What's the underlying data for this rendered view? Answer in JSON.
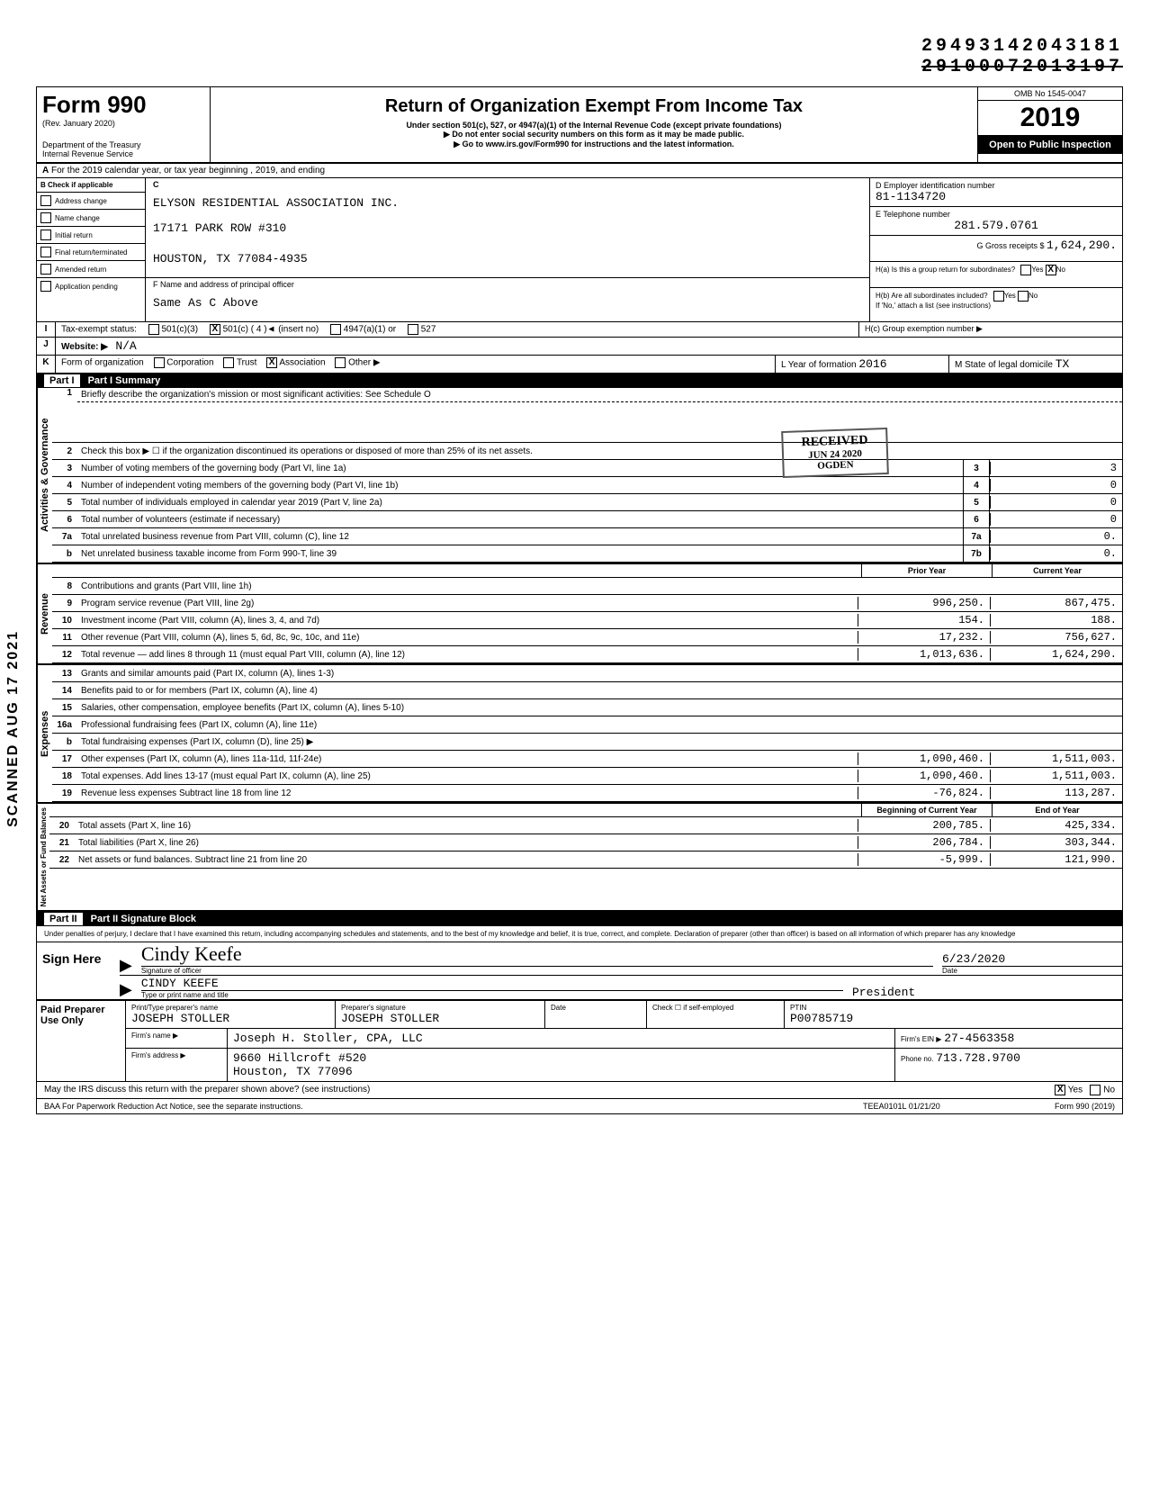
{
  "top_codes": {
    "line1": "29493142043181",
    "line2": "29100072013197"
  },
  "scanned_stamp": "SCANNED AUG 17 2021",
  "received_stamp": {
    "l1": "RECEIVED",
    "l2": "JUN 24 2020",
    "l3": "OGDEN"
  },
  "header": {
    "form": "Form 990",
    "rev": "(Rev. January 2020)",
    "dept": "Department of the Treasury\nInternal Revenue Service",
    "title": "Return of Organization Exempt From Income Tax",
    "sub1": "Under section 501(c), 527, or 4947(a)(1) of the Internal Revenue Code (except private foundations)",
    "sub2": "▶ Do not enter social security numbers on this form as it may be made public.",
    "sub3": "▶ Go to www.irs.gov/Form990 for instructions and the latest information.",
    "omb": "OMB No 1545-0047",
    "year": "2019",
    "open": "Open to Public Inspection"
  },
  "row_a": "For the 2019 calendar year, or tax year beginning                 , 2019, and ending",
  "section_b": {
    "checks": [
      "Address change",
      "Name change",
      "Initial return",
      "Final return/terminated",
      "Amended return",
      "Application pending"
    ],
    "name": "ELYSON RESIDENTIAL ASSOCIATION INC.",
    "addr1": "17171 PARK ROW #310",
    "addr2": "HOUSTON, TX 77084-4935",
    "f_label": "F Name and address of principal officer",
    "f_value": "Same As C Above",
    "d_label": "D Employer identification number",
    "ein": "81-1134720",
    "e_label": "E Telephone number",
    "phone": "281.579.0761",
    "g_label": "G Gross receipts $",
    "gross": "1,624,290.",
    "ha": "H(a) Is this a group return for subordinates?",
    "hb": "H(b) Are all subordinates included?",
    "hb2": "If 'No,' attach a list (see instructions)",
    "hc": "H(c) Group exemption number ▶"
  },
  "row_i": {
    "label": "Tax-exempt status:",
    "v501c3": "501(c)(3)",
    "v501c": "501(c) ( 4 )◄ (insert no)",
    "v4947": "4947(a)(1) or",
    "v527": "527"
  },
  "row_j": {
    "label": "Website: ▶",
    "val": "N/A"
  },
  "row_k": {
    "label": "Form of organization",
    "opts": [
      "Corporation",
      "Trust",
      "Association",
      "Other ▶"
    ],
    "l_year_lbl": "L Year of formation",
    "l_year": "2016",
    "m_lbl": "M State of legal domicile",
    "m_val": "TX"
  },
  "part1": {
    "header": "Part I   Summary",
    "vtab1": "Activities & Governance",
    "vtab2": "Revenue",
    "vtab3": "Expenses",
    "vtab4": "Net Assets or Fund Balances",
    "line1": "Briefly describe the organization's mission or most significant activities: See Schedule O",
    "line2": "Check this box ▶ ☐ if the organization discontinued its operations or disposed of more than 25% of its net assets.",
    "lines_gov": [
      {
        "n": "3",
        "t": "Number of voting members of the governing body (Part VI, line 1a)",
        "b": "3",
        "v": "3"
      },
      {
        "n": "4",
        "t": "Number of independent voting members of the governing body (Part VI, line 1b)",
        "b": "4",
        "v": "0"
      },
      {
        "n": "5",
        "t": "Total number of individuals employed in calendar year 2019 (Part V, line 2a)",
        "b": "5",
        "v": "0"
      },
      {
        "n": "6",
        "t": "Total number of volunteers (estimate if necessary)",
        "b": "6",
        "v": "0"
      },
      {
        "n": "7a",
        "t": "Total unrelated business revenue from Part VIII, column (C), line 12",
        "b": "7a",
        "v": "0."
      },
      {
        "n": "b",
        "t": "Net unrelated business taxable income from Form 990-T, line 39",
        "b": "7b",
        "v": "0."
      }
    ],
    "prior_lbl": "Prior Year",
    "curr_lbl": "Current Year",
    "rev": [
      {
        "n": "8",
        "t": "Contributions and grants (Part VIII, line 1h)",
        "p": "",
        "c": ""
      },
      {
        "n": "9",
        "t": "Program service revenue (Part VIII, line 2g)",
        "p": "996,250.",
        "c": "867,475."
      },
      {
        "n": "10",
        "t": "Investment income (Part VIII, column (A), lines 3, 4, and 7d)",
        "p": "154.",
        "c": "188."
      },
      {
        "n": "11",
        "t": "Other revenue (Part VIII, column (A), lines 5, 6d, 8c, 9c, 10c, and 11e)",
        "p": "17,232.",
        "c": "756,627."
      },
      {
        "n": "12",
        "t": "Total revenue — add lines 8 through 11 (must equal Part VIII, column (A), line 12)",
        "p": "1,013,636.",
        "c": "1,624,290."
      }
    ],
    "exp": [
      {
        "n": "13",
        "t": "Grants and similar amounts paid (Part IX, column (A), lines 1-3)",
        "p": "",
        "c": ""
      },
      {
        "n": "14",
        "t": "Benefits paid to or for members (Part IX, column (A), line 4)",
        "p": "",
        "c": ""
      },
      {
        "n": "15",
        "t": "Salaries, other compensation, employee benefits (Part IX, column (A), lines 5-10)",
        "p": "",
        "c": ""
      },
      {
        "n": "16a",
        "t": "Professional fundraising fees (Part IX, column (A), line 11e)",
        "p": "",
        "c": ""
      },
      {
        "n": "b",
        "t": "Total fundraising expenses (Part IX, column (D), line 25) ▶",
        "p": "",
        "c": ""
      },
      {
        "n": "17",
        "t": "Other expenses (Part IX, column (A), lines 11a-11d, 11f-24e)",
        "p": "1,090,460.",
        "c": "1,511,003."
      },
      {
        "n": "18",
        "t": "Total expenses. Add lines 13-17 (must equal Part IX, column (A), line 25)",
        "p": "1,090,460.",
        "c": "1,511,003."
      },
      {
        "n": "19",
        "t": "Revenue less expenses Subtract line 18 from line 12",
        "p": "-76,824.",
        "c": "113,287."
      }
    ],
    "boy_lbl": "Beginning of Current Year",
    "eoy_lbl": "End of Year",
    "net": [
      {
        "n": "20",
        "t": "Total assets (Part X, line 16)",
        "p": "200,785.",
        "c": "425,334."
      },
      {
        "n": "21",
        "t": "Total liabilities (Part X, line 26)",
        "p": "206,784.",
        "c": "303,344."
      },
      {
        "n": "22",
        "t": "Net assets or fund balances. Subtract line 21 from line 20",
        "p": "-5,999.",
        "c": "121,990."
      }
    ]
  },
  "part2": {
    "header": "Part II   Signature Block",
    "penalty": "Under penalties of perjury, I declare that I have examined this return, including accompanying schedules and statements, and to the best of my knowledge and belief, it is true, correct, and complete. Declaration of preparer (other than officer) is based on all information of which preparer has any knowledge",
    "sign_here": "Sign Here",
    "sig_name": "Cindy Keefe",
    "sig_lbl": "Signature of officer",
    "date": "6/23/2020",
    "date_lbl": "Date",
    "print_name": "CINDY KEEFE",
    "print_lbl": "Type or print name and title",
    "title": "President",
    "paid_lbl": "Paid Preparer Use Only",
    "prep_name_lbl": "Print/Type preparer's name",
    "prep_name": "JOSEPH STOLLER",
    "prep_sig_lbl": "Preparer's signature",
    "prep_sig": "JOSEPH STOLLER",
    "prep_date_lbl": "Date",
    "check_lbl": "Check ☐ if self-employed",
    "ptin_lbl": "PTIN",
    "ptin": "P00785719",
    "firm_name_lbl": "Firm's name ▶",
    "firm_name": "Joseph H. Stoller, CPA, LLC",
    "firm_addr_lbl": "Firm's address ▶",
    "firm_addr1": "9660 Hillcroft #520",
    "firm_addr2": "Houston, TX 77096",
    "firm_ein_lbl": "Firm's EIN ▶",
    "firm_ein": "27-4563358",
    "firm_phone_lbl": "Phone no.",
    "firm_phone": "713.728.9700",
    "discuss": "May the IRS discuss this return with the preparer shown above? (see instructions)",
    "baa": "BAA  For Paperwork Reduction Act Notice, see the separate instructions.",
    "teea": "TEEA0101L 01/21/20",
    "formno": "Form 990 (2019)"
  }
}
